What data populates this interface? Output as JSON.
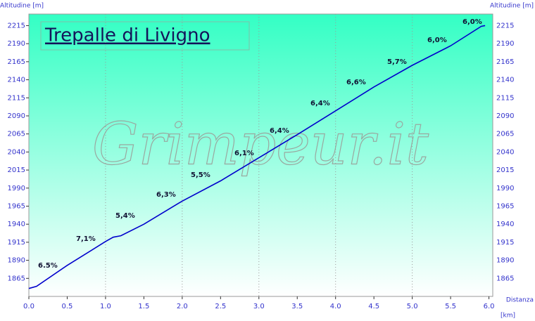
{
  "chart_data": {
    "type": "line",
    "title": "Trepalle di Livigno",
    "watermark": "Grimpeur.it",
    "y_label": "Altitudine [m]",
    "y2_label": "Altitudine [m]",
    "x_label": "Distanza",
    "x_unit": "[km]",
    "x": [
      0,
      0.1,
      0.5,
      1.0,
      1.1,
      1.2,
      1.5,
      2.0,
      2.5,
      3.0,
      3.5,
      4.0,
      4.5,
      5.0,
      5.5,
      5.9,
      5.95
    ],
    "series": [
      {
        "name": "Altitudine",
        "color": "#0000cc",
        "values": [
          1851,
          1854,
          1883,
          1916,
          1922,
          1924,
          1940,
          1972,
          2000,
          2032,
          2064,
          2097,
          2130,
          2160,
          2187,
          2214,
          2215
        ]
      }
    ],
    "annotations": [
      "6.5%",
      "7,1%",
      "5,4%",
      "6,3%",
      "5,5%",
      "6,1%",
      "6,4%",
      "6,4%",
      "6,6%",
      "5,7%",
      "6,0%",
      "6,0%"
    ],
    "xlim": [
      0,
      6.05
    ],
    "ylim": [
      1840,
      2231
    ],
    "xticks": [
      {
        "value": 0,
        "label": "0.0"
      },
      0.5,
      {
        "value": 1,
        "label": "1.0"
      },
      1.5,
      {
        "value": 2,
        "label": "2.0"
      },
      2.5,
      {
        "value": 3,
        "label": "3.0"
      },
      3.5,
      {
        "value": 4,
        "label": "4.0"
      },
      4.5,
      {
        "value": 5,
        "label": "5.0"
      },
      5.5,
      {
        "value": 6,
        "label": "6.0"
      }
    ],
    "yticks": [
      1865,
      1890,
      1915,
      1940,
      1965,
      1990,
      2015,
      2040,
      2065,
      2090,
      2115,
      2140,
      2165,
      2190,
      2215
    ],
    "grid": true
  }
}
